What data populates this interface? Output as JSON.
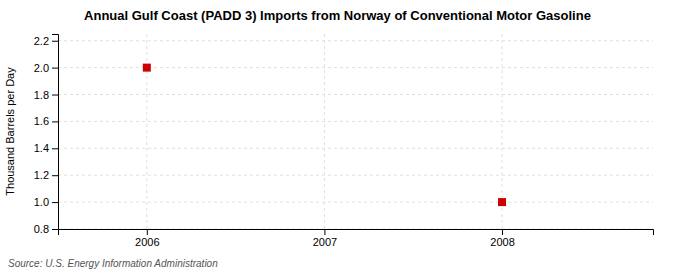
{
  "chart_data": {
    "type": "scatter",
    "title": "Annual Gulf Coast (PADD 3) Imports from Norway of Conventional Motor Gasoline",
    "ylabel": "Thousand Barrels per Day",
    "annotations": [
      "Source: U.S. Energy Information Administration"
    ],
    "x": [
      2006,
      2008
    ],
    "values": [
      2.0,
      1.0
    ],
    "color": "#cc0000",
    "marker": "square",
    "xlim": [
      2005.5,
      2008.85
    ],
    "xticks": [
      2006,
      2007,
      2008
    ],
    "ylim": [
      0.8,
      2.25
    ],
    "yticks": [
      0.8,
      {
        "value": 1,
        "label": "1.0"
      },
      1.2,
      1.4,
      1.6,
      1.8,
      {
        "value": 2,
        "label": "2.0"
      },
      2.2
    ],
    "grid": true
  }
}
